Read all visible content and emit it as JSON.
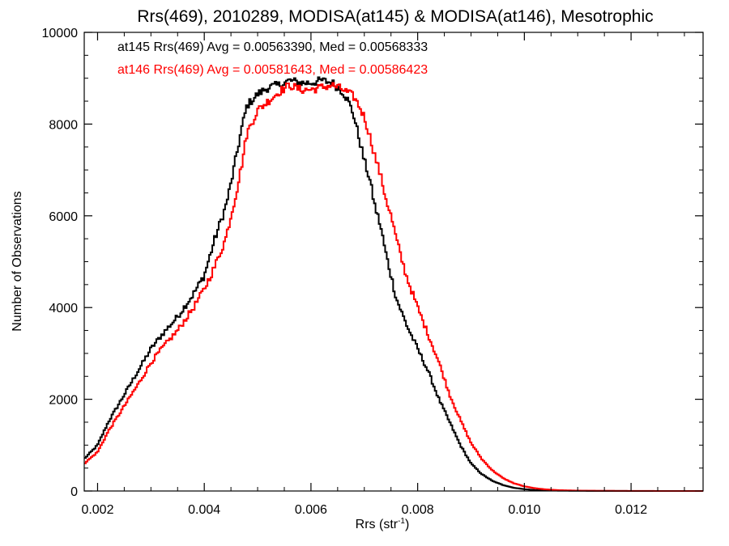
{
  "chart_data": {
    "type": "line",
    "title": "Rrs(469), 2010289, MODISA(at145) & MODISA(at146), Mesotrophic",
    "xlabel": "Rrs (str",
    "xlabel_sup": "-1",
    "xlabel_close": ")",
    "ylabel": "Number of Observations",
    "xlim": [
      0.00175,
      0.01335
    ],
    "ylim": [
      0,
      10000
    ],
    "x_ticks": [
      0.002,
      0.004,
      0.006,
      0.008,
      0.01,
      0.012
    ],
    "x_tick_labels": [
      "0.002",
      "0.004",
      "0.006",
      "0.008",
      "0.010",
      "0.012"
    ],
    "y_ticks": [
      0,
      2000,
      4000,
      6000,
      8000,
      10000
    ],
    "y_tick_labels": [
      "0",
      "2000",
      "4000",
      "6000",
      "8000",
      "10000"
    ],
    "grid": false,
    "step": true,
    "series": [
      {
        "name": "at145 Rrs(469) Avg = 0.00563390, Med = 0.00568333",
        "color": "#000000",
        "points": [
          [
            0.00175,
            700
          ],
          [
            0.002,
            1000
          ],
          [
            0.0022,
            1500
          ],
          [
            0.0025,
            2100
          ],
          [
            0.0028,
            2700
          ],
          [
            0.003,
            3100
          ],
          [
            0.0032,
            3400
          ],
          [
            0.0035,
            3800
          ],
          [
            0.0038,
            4300
          ],
          [
            0.004,
            4700
          ],
          [
            0.0042,
            5500
          ],
          [
            0.0044,
            6200
          ],
          [
            0.0045,
            6700
          ],
          [
            0.0046,
            7300
          ],
          [
            0.0047,
            7900
          ],
          [
            0.0048,
            8400
          ],
          [
            0.005,
            8650
          ],
          [
            0.0052,
            8800
          ],
          [
            0.0054,
            8850
          ],
          [
            0.0056,
            8950
          ],
          [
            0.0058,
            8900
          ],
          [
            0.006,
            8900
          ],
          [
            0.0062,
            8950
          ],
          [
            0.0064,
            8900
          ],
          [
            0.0066,
            8700
          ],
          [
            0.0067,
            8500
          ],
          [
            0.0068,
            8200
          ],
          [
            0.0069,
            7700
          ],
          [
            0.007,
            7200
          ],
          [
            0.0071,
            6800
          ],
          [
            0.0072,
            6200
          ],
          [
            0.0073,
            5800
          ],
          [
            0.0074,
            5200
          ],
          [
            0.0075,
            4700
          ],
          [
            0.0076,
            4200
          ],
          [
            0.0078,
            3600
          ],
          [
            0.008,
            3100
          ],
          [
            0.0082,
            2600
          ],
          [
            0.0084,
            2000
          ],
          [
            0.0086,
            1500
          ],
          [
            0.0088,
            1000
          ],
          [
            0.009,
            600
          ],
          [
            0.0092,
            370
          ],
          [
            0.0094,
            220
          ],
          [
            0.0096,
            130
          ],
          [
            0.0098,
            70
          ],
          [
            0.01,
            40
          ],
          [
            0.0102,
            20
          ],
          [
            0.0104,
            12
          ],
          [
            0.0106,
            8
          ],
          [
            0.011,
            4
          ],
          [
            0.0115,
            2
          ],
          [
            0.012,
            1
          ],
          [
            0.0125,
            0
          ],
          [
            0.01335,
            0
          ]
        ]
      },
      {
        "name": "at146 Rrs(469) Avg = 0.00581643, Med = 0.00586423",
        "color": "#ff0000",
        "points": [
          [
            0.00175,
            600
          ],
          [
            0.002,
            850
          ],
          [
            0.0022,
            1300
          ],
          [
            0.0025,
            1850
          ],
          [
            0.0028,
            2400
          ],
          [
            0.003,
            2800
          ],
          [
            0.0032,
            3100
          ],
          [
            0.0035,
            3500
          ],
          [
            0.0038,
            4000
          ],
          [
            0.004,
            4400
          ],
          [
            0.0042,
            4900
          ],
          [
            0.0044,
            5500
          ],
          [
            0.0045,
            6000
          ],
          [
            0.0046,
            6500
          ],
          [
            0.0047,
            7100
          ],
          [
            0.0048,
            7800
          ],
          [
            0.005,
            8300
          ],
          [
            0.0052,
            8500
          ],
          [
            0.0054,
            8700
          ],
          [
            0.0056,
            8850
          ],
          [
            0.0058,
            8750
          ],
          [
            0.006,
            8750
          ],
          [
            0.0062,
            8800
          ],
          [
            0.0064,
            8850
          ],
          [
            0.0066,
            8750
          ],
          [
            0.0068,
            8600
          ],
          [
            0.0069,
            8400
          ],
          [
            0.007,
            8150
          ],
          [
            0.0071,
            7750
          ],
          [
            0.0072,
            7300
          ],
          [
            0.0073,
            6900
          ],
          [
            0.0074,
            6400
          ],
          [
            0.0075,
            6000
          ],
          [
            0.0076,
            5500
          ],
          [
            0.0077,
            5050
          ],
          [
            0.0078,
            4650
          ],
          [
            0.008,
            4000
          ],
          [
            0.0082,
            3400
          ],
          [
            0.0084,
            2800
          ],
          [
            0.0086,
            2100
          ],
          [
            0.0088,
            1550
          ],
          [
            0.009,
            1050
          ],
          [
            0.0092,
            700
          ],
          [
            0.0094,
            450
          ],
          [
            0.0096,
            280
          ],
          [
            0.0098,
            170
          ],
          [
            0.01,
            100
          ],
          [
            0.0102,
            60
          ],
          [
            0.0104,
            35
          ],
          [
            0.0106,
            20
          ],
          [
            0.011,
            8
          ],
          [
            0.0115,
            4
          ],
          [
            0.012,
            2
          ],
          [
            0.0125,
            1
          ],
          [
            0.01335,
            0
          ]
        ]
      }
    ]
  }
}
